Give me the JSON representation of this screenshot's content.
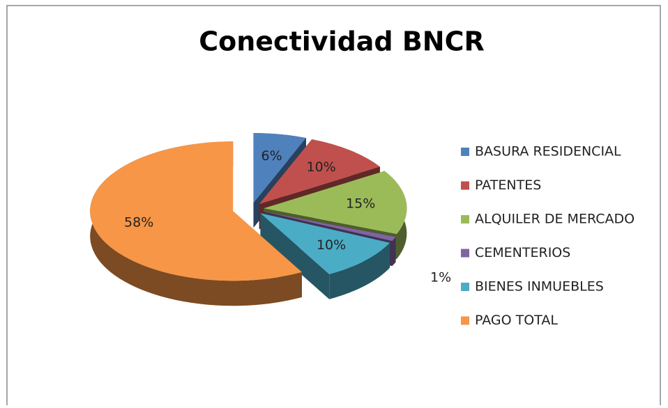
{
  "chart_data": {
    "type": "pie",
    "title": "Conectividad BNCR",
    "categories": [
      "BASURA RESIDENCIAL",
      "PATENTES",
      "ALQUILER DE MERCADO",
      "CEMENTERIOS",
      "BIENES INMUEBLES",
      "PAGO TOTAL"
    ],
    "values": [
      6,
      10,
      15,
      1,
      10,
      58
    ],
    "value_labels": [
      "6%",
      "10%",
      "15%",
      "1%",
      "10%",
      "58%"
    ],
    "colors": [
      "#4f81bd",
      "#c0504d",
      "#9bbb59",
      "#8064a2",
      "#4bacc6",
      "#f79646"
    ],
    "legend": "right"
  }
}
